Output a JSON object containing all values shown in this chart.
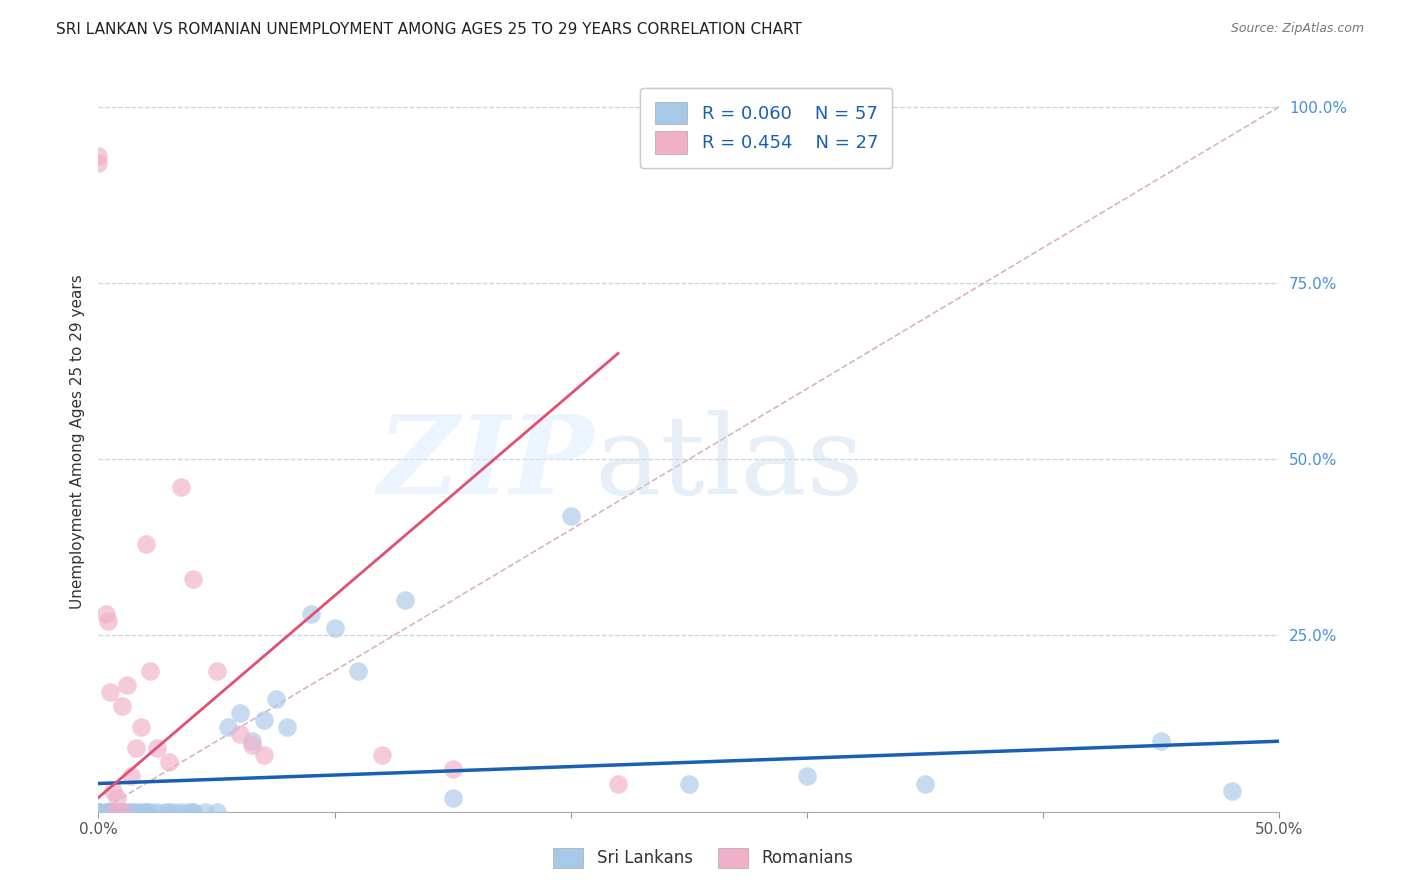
{
  "title": "SRI LANKAN VS ROMANIAN UNEMPLOYMENT AMONG AGES 25 TO 29 YEARS CORRELATION CHART",
  "source": "Source: ZipAtlas.com",
  "ylabel": "Unemployment Among Ages 25 to 29 years",
  "xlim": [
    0.0,
    0.5
  ],
  "ylim": [
    0.0,
    1.05
  ],
  "legend_R_sri": "R = 0.060",
  "legend_N_sri": "N = 57",
  "legend_R_rom": "R = 0.454",
  "legend_N_rom": "N = 27",
  "sri_color": "#a8c8e8",
  "rom_color": "#f0b0c8",
  "sri_line_color": "#1a5fb4",
  "rom_line_color": "#e05070",
  "diagonal_color": "#d0a0b0",
  "background_color": "#ffffff",
  "tick_color": "#4a90d9",
  "sri_lankans_x": [
    0.0,
    0.0,
    0.0,
    0.0,
    0.0,
    0.0,
    0.0,
    0.0,
    0.0,
    0.0,
    0.003,
    0.003,
    0.004,
    0.005,
    0.005,
    0.006,
    0.007,
    0.007,
    0.008,
    0.009,
    0.01,
    0.01,
    0.012,
    0.013,
    0.015,
    0.016,
    0.018,
    0.02,
    0.02,
    0.022,
    0.025,
    0.028,
    0.03,
    0.032,
    0.035,
    0.038,
    0.04,
    0.04,
    0.045,
    0.05,
    0.055,
    0.06,
    0.065,
    0.07,
    0.075,
    0.08,
    0.09,
    0.1,
    0.11,
    0.13,
    0.15,
    0.2,
    0.25,
    0.3,
    0.35,
    0.45,
    0.48
  ],
  "sri_lankans_y": [
    0.0,
    0.0,
    0.0,
    0.0,
    0.0,
    0.0,
    0.0,
    0.0,
    0.0,
    0.0,
    0.0,
    0.0,
    0.0,
    0.0,
    0.0,
    0.0,
    0.0,
    0.0,
    0.0,
    0.0,
    0.0,
    0.0,
    0.0,
    0.0,
    0.0,
    0.0,
    0.0,
    0.0,
    0.0,
    0.0,
    0.0,
    0.0,
    0.0,
    0.0,
    0.0,
    0.0,
    0.0,
    0.0,
    0.0,
    0.0,
    0.12,
    0.14,
    0.1,
    0.13,
    0.16,
    0.12,
    0.28,
    0.26,
    0.2,
    0.3,
    0.02,
    0.42,
    0.04,
    0.05,
    0.04,
    0.1,
    0.03
  ],
  "romanians_x": [
    0.0,
    0.0,
    0.003,
    0.004,
    0.005,
    0.006,
    0.007,
    0.008,
    0.01,
    0.01,
    0.012,
    0.014,
    0.016,
    0.018,
    0.02,
    0.022,
    0.025,
    0.03,
    0.035,
    0.04,
    0.05,
    0.06,
    0.065,
    0.07,
    0.12,
    0.15,
    0.22
  ],
  "romanians_y": [
    0.93,
    0.92,
    0.28,
    0.27,
    0.17,
    0.03,
    0.0,
    0.02,
    0.0,
    0.15,
    0.18,
    0.05,
    0.09,
    0.12,
    0.38,
    0.2,
    0.09,
    0.07,
    0.46,
    0.33,
    0.2,
    0.11,
    0.095,
    0.08,
    0.08,
    0.06,
    0.04
  ]
}
